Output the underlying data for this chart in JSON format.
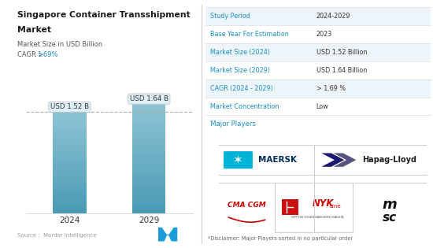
{
  "title_line1": "Singapore Container Transshipment",
  "title_line2": "Market",
  "subtitle1": "Market Size in USD Billion",
  "cagr_prefix": "CAGR >",
  "cagr_value": "1.69%",
  "bar_years": [
    "2024",
    "2029"
  ],
  "bar_values": [
    1.52,
    1.64
  ],
  "bar_labels": [
    "USD 1.52 B",
    "USD 1.64 B"
  ],
  "bar_color_light": "#8ec4d4",
  "bar_color_dark": "#4a9ab5",
  "dashed_line_color": "#aaaaaa",
  "source_text": "Source :  Mordor Intelligence",
  "table_label_color": "#1a8fc0",
  "table_headers": [
    "Study Period",
    "Base Year For Estimation",
    "Market Size (2024)",
    "Market Size (2029)",
    "CAGR (2024 - 2029)",
    "Market Concentration"
  ],
  "table_values": [
    "2024-2029",
    "2023",
    "USD 1.52 Billion",
    "USD 1.64 Billion",
    "> 1.69 %",
    "Low"
  ],
  "major_players_label": "Major Players",
  "disclaimer": "*Disclaimer: Major Players sorted in no particular order",
  "bg_color": "#ffffff",
  "row_bg_colors": [
    "#edf5fa",
    "#ffffff",
    "#edf5fa",
    "#ffffff",
    "#edf5fa",
    "#ffffff"
  ],
  "divider_color": "#cccccc",
  "ylim": [
    0,
    2.05
  ]
}
